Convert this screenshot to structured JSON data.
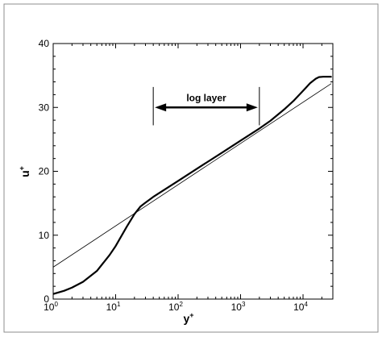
{
  "chart_data": {
    "type": "line",
    "xlabel": "y",
    "xlabel_sup": "+",
    "ylabel": "u",
    "ylabel_sup": "+",
    "x_scale": "log",
    "xlim": [
      1,
      30000
    ],
    "ylim": [
      0,
      40
    ],
    "x_ticks": [
      {
        "value": 1,
        "base": "10",
        "exp": "0"
      },
      {
        "value": 10,
        "base": "10",
        "exp": "1"
      },
      {
        "value": 100,
        "base": "10",
        "exp": "2"
      },
      {
        "value": 1000,
        "base": "10",
        "exp": "3"
      },
      {
        "value": 10000,
        "base": "10",
        "exp": "4"
      }
    ],
    "y_ticks": [
      0,
      10,
      20,
      30,
      40
    ],
    "grid": false,
    "series": [
      {
        "style": "thick",
        "color": "#000000",
        "x": [
          1,
          1.5,
          2,
          3,
          5,
          8,
          10,
          15,
          20,
          25,
          30,
          40,
          60,
          100,
          200,
          500,
          1000,
          2000,
          3000,
          5000,
          7000,
          10000,
          13000,
          16000,
          18000,
          21000,
          25000,
          28000
        ],
        "y": [
          0.8,
          1.3,
          1.8,
          2.7,
          4.4,
          6.9,
          8.3,
          11.3,
          13.3,
          14.5,
          15.1,
          16.0,
          17.1,
          18.5,
          20.4,
          22.9,
          24.8,
          26.7,
          27.9,
          29.7,
          31.0,
          32.6,
          33.8,
          34.5,
          34.75,
          34.8,
          34.8,
          34.8
        ]
      },
      {
        "style": "thin",
        "color": "#000000",
        "x": [
          1,
          28000
        ],
        "y": [
          5.0,
          33.7
        ]
      }
    ],
    "annotations": [
      {
        "text": "log layer",
        "x_from": 40,
        "x_to": 2000,
        "y": 30,
        "bar_top": 33.2,
        "bar_bottom": 27.2
      }
    ]
  }
}
